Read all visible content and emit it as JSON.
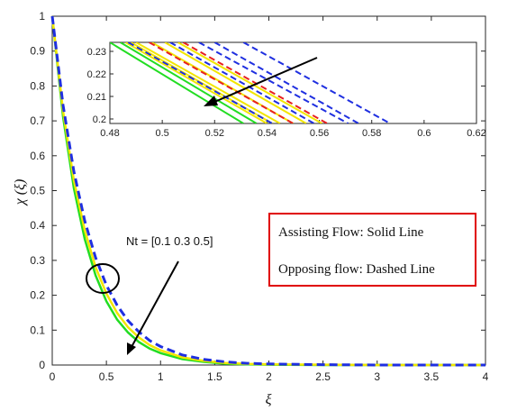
{
  "chart_data": {
    "type": "line",
    "xlabel": "ξ",
    "ylabel": "χ (ξ)",
    "xlim": [
      0,
      4
    ],
    "ylim": [
      0,
      1
    ],
    "xticks": [
      "0",
      "0.5",
      "1",
      "1.5",
      "2",
      "2.5",
      "3",
      "3.5",
      "4"
    ],
    "yticks": [
      "0",
      "0.1",
      "0.2",
      "0.3",
      "0.4",
      "0.5",
      "0.6",
      "0.7",
      "0.8",
      "0.9",
      "1"
    ],
    "grid": false,
    "series": [
      {
        "color": "#22dd22",
        "style": "solid",
        "x": [
          0,
          0.1,
          0.2,
          0.3,
          0.4,
          0.5,
          0.6,
          0.7,
          0.8,
          0.9,
          1,
          1.2,
          1.4,
          1.6,
          1.8,
          2,
          2.5,
          3,
          3.5,
          4
        ],
        "y": [
          1,
          0.712,
          0.507,
          0.361,
          0.257,
          0.183,
          0.13,
          0.093,
          0.066,
          0.047,
          0.034,
          0.017,
          0.009,
          0.004,
          0.002,
          0.001,
          0,
          0,
          0,
          0
        ]
      },
      {
        "color": "#f2e600",
        "style": "solid",
        "x": [
          0,
          0.1,
          0.2,
          0.3,
          0.4,
          0.5,
          0.6,
          0.7,
          0.8,
          0.9,
          1,
          1.2,
          1.4,
          1.6,
          1.8,
          2,
          2.5,
          3,
          3.5,
          4
        ],
        "y": [
          1,
          0.728,
          0.53,
          0.386,
          0.281,
          0.205,
          0.149,
          0.108,
          0.079,
          0.057,
          0.042,
          0.022,
          0.012,
          0.006,
          0.003,
          0.002,
          0.001,
          0,
          0,
          0
        ]
      },
      {
        "color": "#1f2fe0",
        "style": "dashed",
        "x": [
          0,
          0.1,
          0.2,
          0.3,
          0.4,
          0.5,
          0.6,
          0.7,
          0.8,
          0.9,
          1,
          1.2,
          1.4,
          1.6,
          1.8,
          2,
          2.5,
          3,
          3.5,
          4
        ],
        "y": [
          1,
          0.745,
          0.555,
          0.413,
          0.308,
          0.229,
          0.171,
          0.127,
          0.095,
          0.07,
          0.053,
          0.029,
          0.016,
          0.009,
          0.005,
          0.003,
          0.001,
          0,
          0,
          0
        ]
      }
    ],
    "inset": {
      "xlim": [
        0.48,
        0.62
      ],
      "ylim": [
        0.198,
        0.234
      ],
      "xticks": [
        "0.48",
        "0.5",
        "0.52",
        "0.54",
        "0.56",
        "0.58",
        "0.6",
        "0.62"
      ],
      "yticks": [
        "0.2",
        "0.21",
        "0.22",
        "0.23"
      ],
      "lines": [
        {
          "color": "#22dd22",
          "style": "solid",
          "x0": 0.48,
          "x1": 0.531
        },
        {
          "color": "#22dd22",
          "style": "solid",
          "x0": 0.484,
          "x1": 0.536
        },
        {
          "color": "#f2e600",
          "style": "solid",
          "x0": 0.486,
          "x1": 0.54
        },
        {
          "color": "#f2e600",
          "style": "solid",
          "x0": 0.488,
          "x1": 0.542
        },
        {
          "color": "#f2e600",
          "style": "solid",
          "x0": 0.49,
          "x1": 0.545
        },
        {
          "color": "#f2e600",
          "style": "solid",
          "x0": 0.496,
          "x1": 0.55
        },
        {
          "color": "#f2e600",
          "style": "solid",
          "x0": 0.501,
          "x1": 0.555
        },
        {
          "color": "#f2e600",
          "style": "solid",
          "x0": 0.506,
          "x1": 0.561
        },
        {
          "color": "#1f2fe0",
          "style": "dashed",
          "x0": 0.487,
          "x1": 0.542
        },
        {
          "color": "#e82020",
          "style": "dashed",
          "x0": 0.495,
          "x1": 0.55
        },
        {
          "color": "#1f2fe0",
          "style": "dashed",
          "x0": 0.503,
          "x1": 0.558
        },
        {
          "color": "#e82020",
          "style": "dashed",
          "x0": 0.508,
          "x1": 0.563
        },
        {
          "color": "#1f2fe0",
          "style": "dashed",
          "x0": 0.514,
          "x1": 0.571
        },
        {
          "color": "#1f2fe0",
          "style": "dashed",
          "x0": 0.52,
          "x1": 0.575
        },
        {
          "color": "#1f2fe0",
          "style": "dashed",
          "x0": 0.531,
          "x1": 0.587
        }
      ]
    },
    "legend_box": {
      "line1": "Assisting Flow:  Solid Line",
      "line2": "Opposing flow: Dashed Line",
      "border_color": "#e00000"
    },
    "annotation": {
      "text": "Nt = [0.1  0.3  0.5]"
    }
  }
}
